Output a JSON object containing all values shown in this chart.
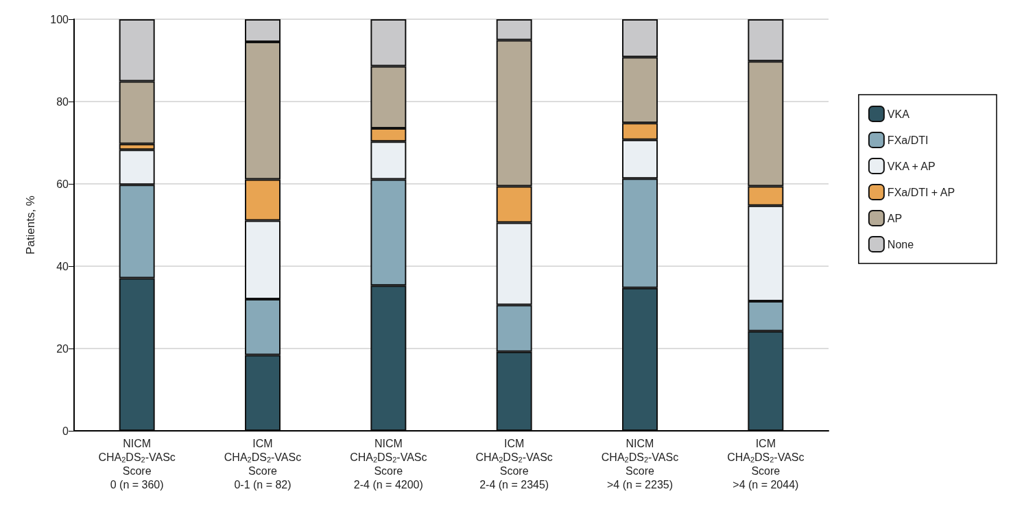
{
  "chart_data": {
    "type": "bar",
    "stacked": true,
    "ylabel": "Patients, %",
    "categories": [
      "NICM\nCHA$_{2}$DS$_{2}$-VASc\nScore\n0 (n = 360)",
      "ICM\nCHA$_{2}$DS$_{2}$-VASc\nScore\n0-1 (n = 82)",
      "NICM\nCHA$_{2}$DS$_{2}$-VASc\nScore\n2-4 (n = 4200)",
      "ICM\nCHA$_{2}$DS$_{2}$-VASc\nScore\n2-4 (n = 2345)",
      "NICM\nCHA$_{2}$DS$_{2}$-VASc\nScore\n>4 (n = 2235)",
      "ICM\nCHA$_{2}$DS$_{2}$-VASc\nScore\n>4 (n = 2044)"
    ],
    "series": [
      {
        "name": "VKA",
        "color": "#2f5562",
        "values": [
          37.1,
          18.4,
          35.3,
          19.2,
          34.7,
          24.2
        ]
      },
      {
        "name": "FXa/DTI",
        "color": "#87a9b8",
        "values": [
          22.7,
          13.6,
          25.8,
          11.4,
          26.6,
          7.3
        ]
      },
      {
        "name": "VKA + AP",
        "color": "#eaeff3",
        "values": [
          8.5,
          19.1,
          9.2,
          20.0,
          9.4,
          23.2
        ]
      },
      {
        "name": "FXa/DTI + AP",
        "color": "#e8a452",
        "values": [
          1.4,
          10.0,
          3.2,
          8.8,
          4.1,
          4.7
        ]
      },
      {
        "name": "AP",
        "color": "#b5aa96",
        "values": [
          15.2,
          33.4,
          15.1,
          35.5,
          16.0,
          30.4
        ]
      },
      {
        "name": "None",
        "color": "#c8c8ca",
        "values": [
          15.1,
          5.5,
          11.4,
          5.1,
          9.2,
          10.2
        ]
      }
    ],
    "ylim": [
      0,
      100
    ],
    "yticks": [
      0,
      20,
      40,
      60,
      80,
      100
    ],
    "grid": "y",
    "legend": "right"
  }
}
